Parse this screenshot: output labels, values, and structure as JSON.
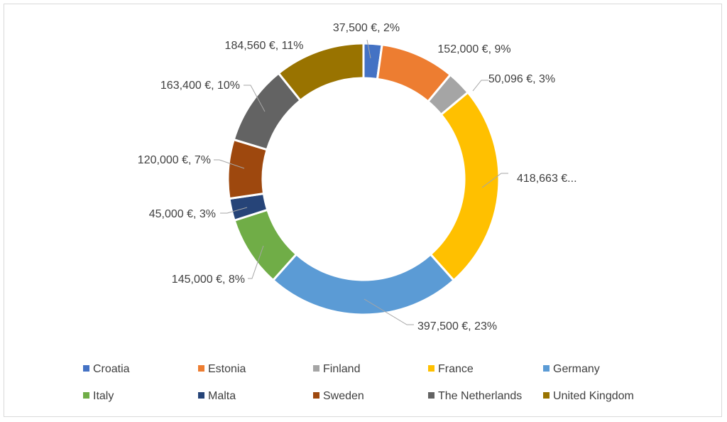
{
  "chart_data": {
    "type": "pie",
    "style": "doughnut",
    "currency": "€",
    "categories": [
      "Croatia",
      "Estonia",
      "Finland",
      "France",
      "Germany",
      "Italy",
      "Malta",
      "Sweden",
      "The Netherlands",
      "United Kingdom"
    ],
    "values": [
      37500,
      152000,
      50096,
      418663,
      397500,
      145000,
      45000,
      120000,
      163400,
      184560
    ],
    "data_labels": [
      "37,500 €, 2%",
      "152,000 €, 9%",
      "50,096 €, 3%",
      "418,663 €...",
      "397,500 €, 23%",
      "145,000 €, 8%",
      "45,000 €, 3%",
      "120,000 €, 7%",
      "163,400 €, 10%",
      "184,560 €, 11%"
    ],
    "colors": [
      "#4472C4",
      "#ED7D31",
      "#A5A5A5",
      "#FFC000",
      "#5B9BD5",
      "#70AD47",
      "#264478",
      "#9E480E",
      "#636363",
      "#997300"
    ],
    "legend_position": "bottom"
  }
}
